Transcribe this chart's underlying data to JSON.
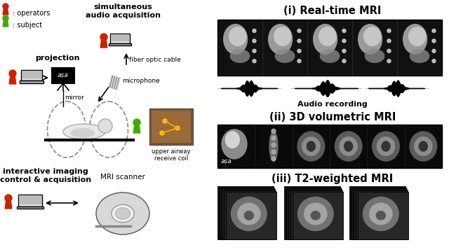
{
  "title_i": "(i) Real-time MRI",
  "title_ii": "(ii) 3D volumetric MRI",
  "title_iii": "(iii) T2-weighted MRI",
  "audio_label": "Audio recording",
  "legend_operators": ": operators",
  "legend_subject": ": subject",
  "label_projection": "projection",
  "label_mirror": "mirror",
  "label_microphone": "microphone",
  "label_fiber": "fiber optic cable",
  "label_simultaneous": "simultaneous\naudio acquisition",
  "label_coil": "upper airway\nreceive coil",
  "label_interactive": "interactive imaging\ncontrol & acquisition",
  "label_scanner": "MRI scanner",
  "bg_color": "#ffffff",
  "red_color": "#cc2200",
  "green_color": "#44aa00"
}
